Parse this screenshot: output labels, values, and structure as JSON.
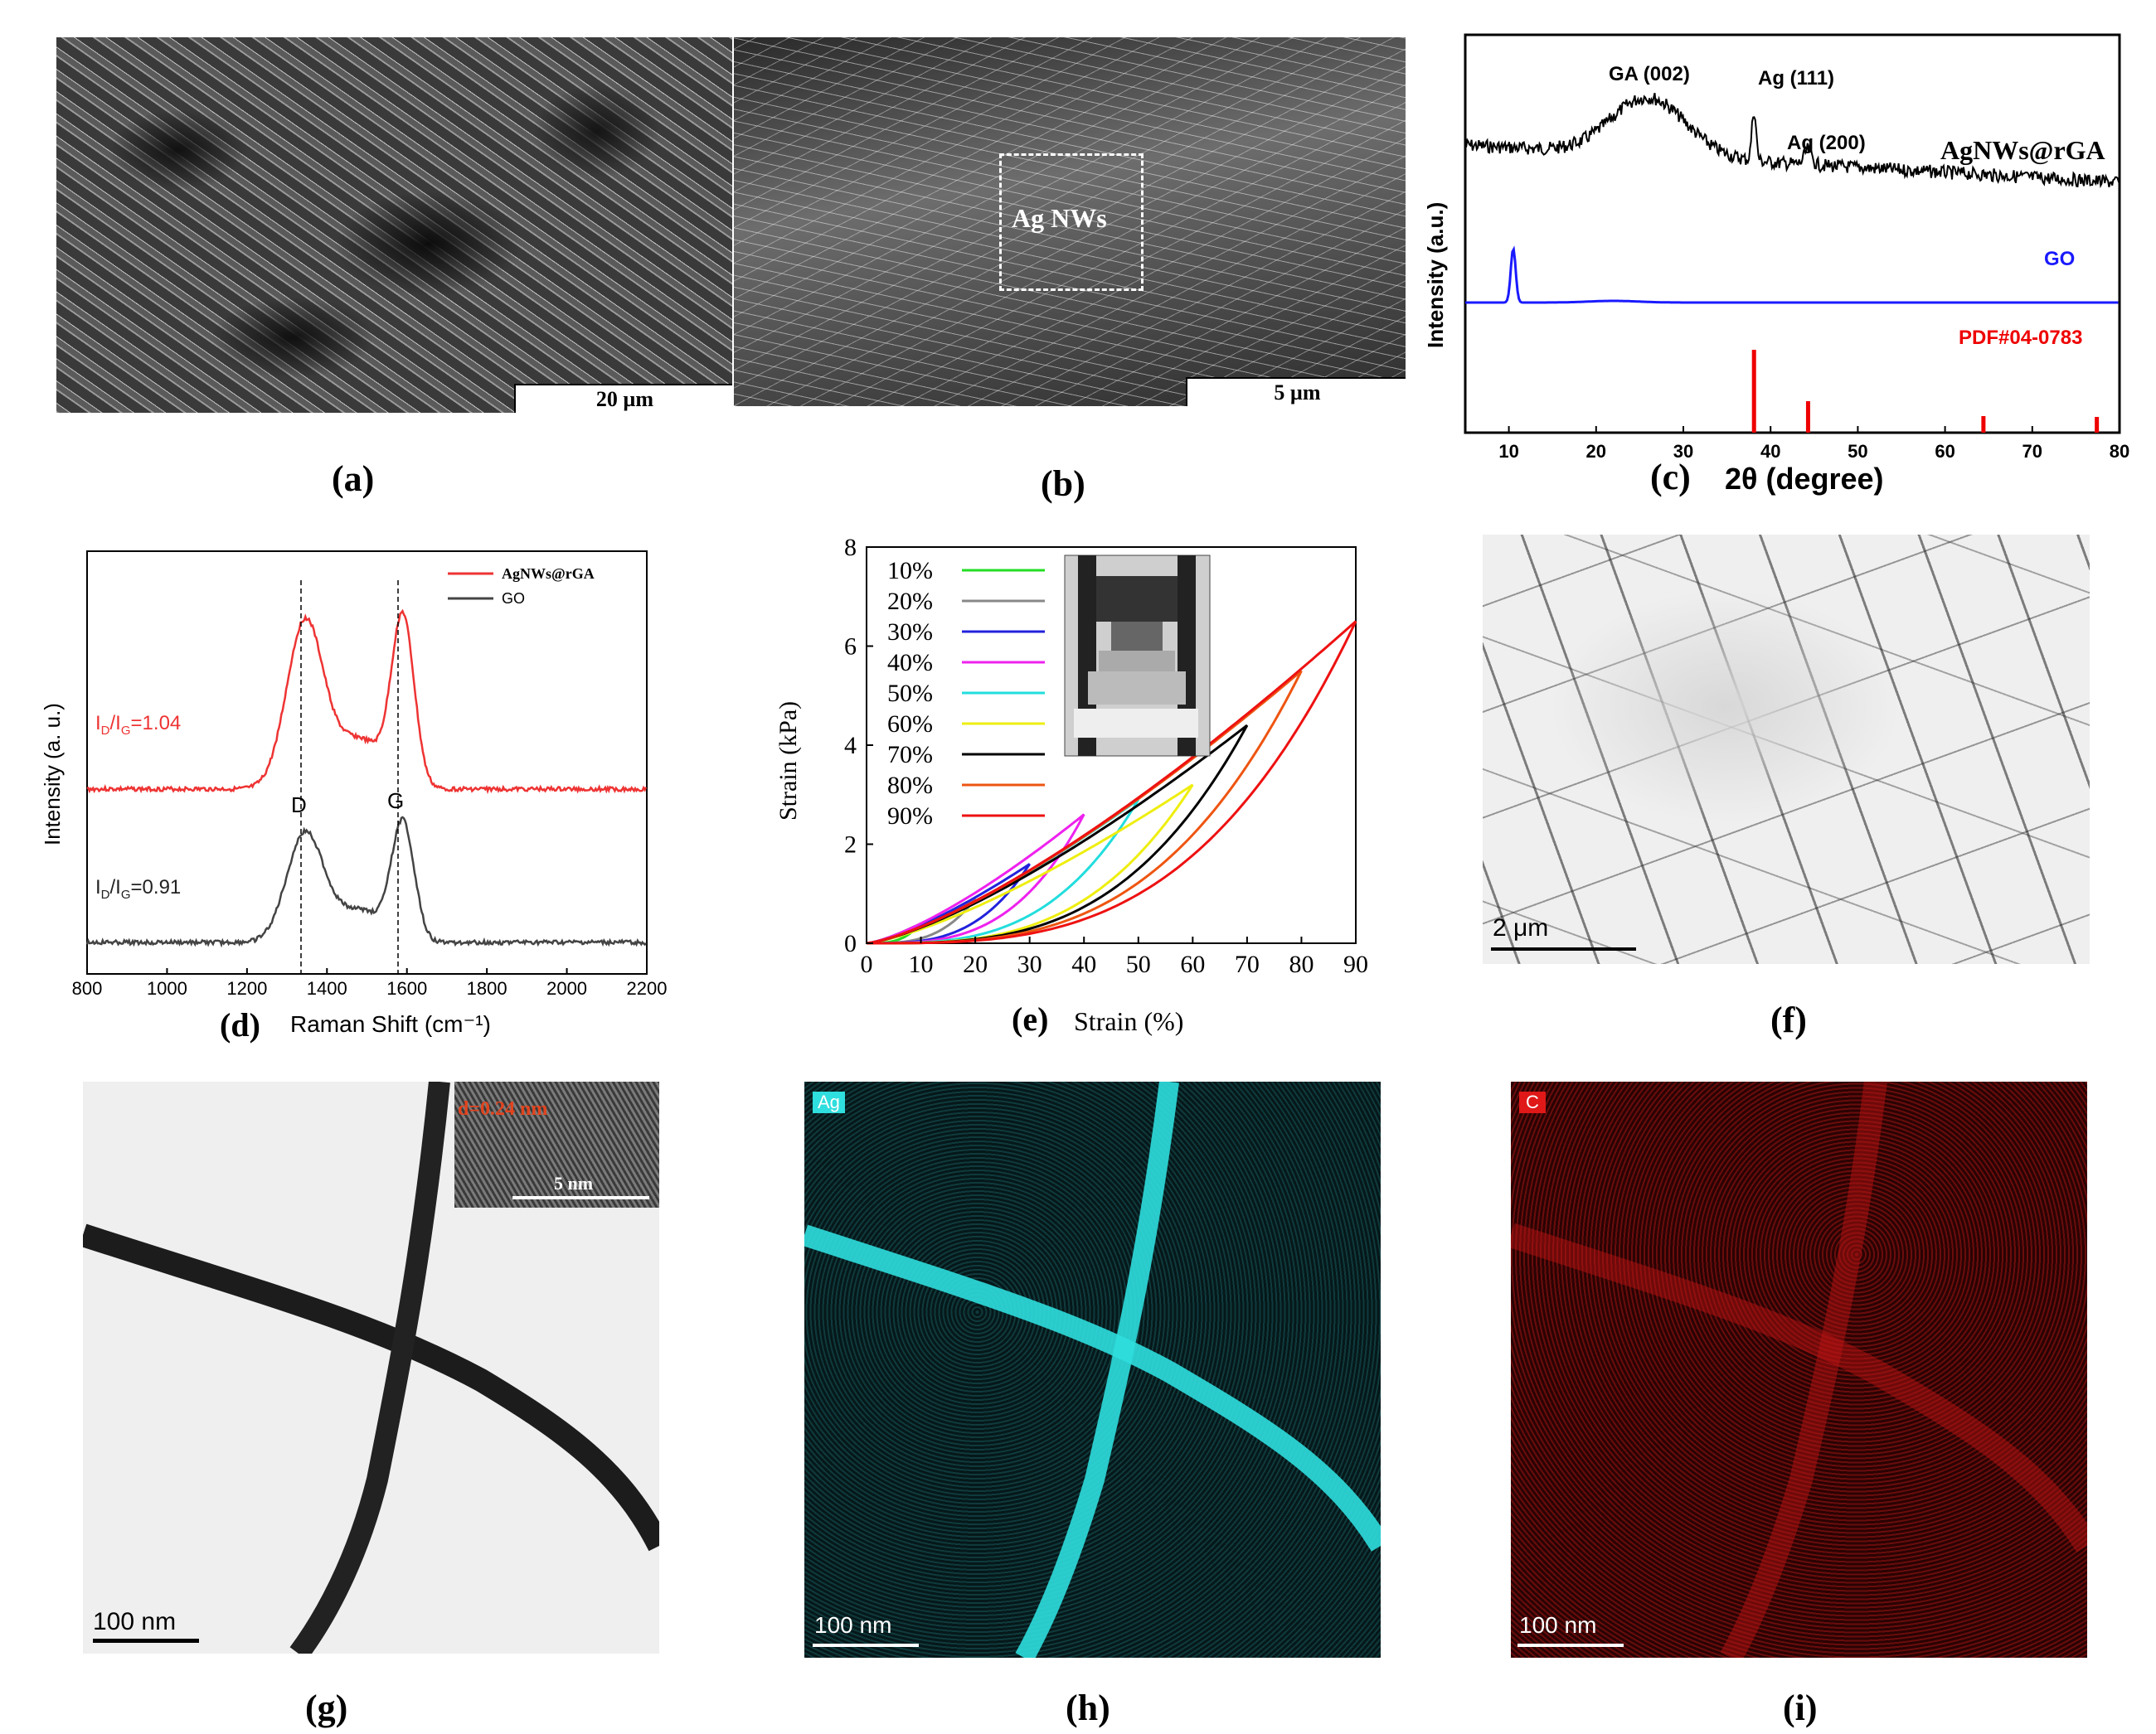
{
  "panels": {
    "a": {
      "label": "(a)",
      "scalebar": "20 µm"
    },
    "b": {
      "label": "(b)",
      "scalebar": "5 µm",
      "box_label": "Ag NWs"
    },
    "c": {
      "label": "(c)",
      "xlabel": "2θ (degree)",
      "ylabel": "Intensity (a.u.)",
      "annot_ga": "GA (002)",
      "annot_ag111": "Ag (111)",
      "annot_ag200": "Ag (200)",
      "legend_sample": "AgNWs@rGA",
      "legend_go": "GO",
      "legend_pdf": "PDF#04-0783",
      "colors": {
        "sample": "#000000",
        "go": "#1a1aff",
        "pdf": "#ee0000"
      }
    },
    "d": {
      "label": "(d)",
      "xlabel": "Raman Shift (cm⁻¹)",
      "ylabel": "Intensity (a. u.)",
      "legend": [
        "AgNWs@rGA",
        "GO"
      ],
      "peak_d": "D",
      "peak_g": "G",
      "ratio_top": "I",
      "ratio_top_sub": "D",
      "ratio_top_mid": "/I",
      "ratio_top_sub2": "G",
      "ratio_top_val": "=1.04",
      "ratio_bot": "I",
      "ratio_bot_sub": "D",
      "ratio_bot_mid": "/I",
      "ratio_bot_sub2": "G",
      "ratio_bot_val": "=0.91",
      "colors": {
        "rga": "#ee3333",
        "go": "#444444"
      }
    },
    "e": {
      "label": "(e)",
      "xlabel": "Strain (%)",
      "ylabel": "Strain (kPa)"
    },
    "f": {
      "label": "(f)",
      "scalebar": "2 μm"
    },
    "g": {
      "label": "(g)",
      "scalebar": "100 nm",
      "inset_d": "d=0.24 nm",
      "inset_scale": "5 nm"
    },
    "h": {
      "label": "(h)",
      "scalebar": "100 nm",
      "tag": "Ag"
    },
    "i": {
      "label": "(i)",
      "scalebar": "100 nm",
      "tag": "C"
    }
  },
  "chart_data": [
    {
      "type": "line",
      "panel": "c",
      "title": "",
      "xlabel": "2θ (degree)",
      "ylabel": "Intensity (a.u.)",
      "xlim": [
        5,
        80
      ],
      "xticks": [
        10,
        20,
        30,
        40,
        50,
        60,
        70,
        80
      ],
      "series": [
        {
          "name": "AgNWs@rGA",
          "peaks": [
            {
              "x": 26,
              "label": "GA (002)"
            },
            {
              "x": 38.1,
              "label": "Ag (111)"
            },
            {
              "x": 44.3,
              "label": "Ag (200)"
            }
          ]
        },
        {
          "name": "GO",
          "peaks": [
            {
              "x": 10.5
            }
          ]
        },
        {
          "name": "PDF#04-0783",
          "sticks": [
            {
              "x": 38.1,
              "h": 1.0
            },
            {
              "x": 44.3,
              "h": 0.38
            },
            {
              "x": 64.4,
              "h": 0.2
            },
            {
              "x": 77.4,
              "h": 0.19
            }
          ]
        }
      ]
    },
    {
      "type": "line",
      "panel": "d",
      "title": "",
      "xlabel": "Raman Shift (cm⁻¹)",
      "ylabel": "Intensity (a. u.)",
      "xlim": [
        800,
        2200
      ],
      "xticks": [
        800,
        1000,
        1200,
        1400,
        1600,
        1800,
        2000,
        2200
      ],
      "series": [
        {
          "name": "AgNWs@rGA",
          "D": 1345,
          "G": 1590,
          "ID_IG": 1.04
        },
        {
          "name": "GO",
          "D": 1345,
          "G": 1590,
          "ID_IG": 0.91
        }
      ]
    },
    {
      "type": "line",
      "panel": "e",
      "title": "",
      "xlabel": "Strain (%)",
      "ylabel": "Strain (kPa)",
      "xlim": [
        0,
        90
      ],
      "ylim": [
        0,
        8
      ],
      "xticks": [
        0,
        10,
        20,
        30,
        40,
        50,
        60,
        70,
        80,
        90
      ],
      "yticks": [
        0,
        2,
        4,
        6,
        8
      ],
      "series": [
        {
          "name": "10%",
          "color": "#22dd22",
          "max_strain": 10,
          "peak": 0.4
        },
        {
          "name": "20%",
          "color": "#888888",
          "max_strain": 20,
          "peak": 0.9
        },
        {
          "name": "30%",
          "color": "#2222dd",
          "max_strain": 30,
          "peak": 1.6
        },
        {
          "name": "40%",
          "color": "#ee22ee",
          "max_strain": 40,
          "peak": 2.6
        },
        {
          "name": "50%",
          "color": "#22dddd",
          "max_strain": 50,
          "peak": 2.9
        },
        {
          "name": "60%",
          "color": "#eeee11",
          "max_strain": 60,
          "peak": 3.2
        },
        {
          "name": "70%",
          "color": "#000000",
          "max_strain": 70,
          "peak": 4.4
        },
        {
          "name": "80%",
          "color": "#ee5511",
          "max_strain": 80,
          "peak": 5.5
        },
        {
          "name": "90%",
          "color": "#ee1111",
          "max_strain": 90,
          "peak": 6.5
        }
      ]
    }
  ]
}
